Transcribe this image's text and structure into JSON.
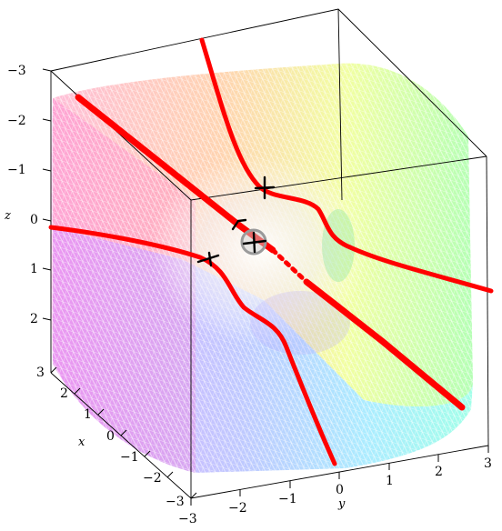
{
  "axes": {
    "z": {
      "label": "z",
      "ticks": [
        "−3",
        "−2",
        "−1",
        "0",
        "1",
        "2"
      ]
    },
    "x": {
      "label": "x",
      "ticks": [
        "3",
        "2",
        "1",
        "0",
        "−1",
        "−2",
        "−3"
      ]
    },
    "y": {
      "label": "y",
      "ticks": [
        "−3",
        "−2",
        "−1",
        "0",
        "1",
        "2",
        "3"
      ]
    }
  },
  "surface_colors": [
    "#ff66cc",
    "#ff8080",
    "#ffcc33",
    "#ccff33",
    "#66ff66",
    "#33ffcc",
    "#66ccff",
    "#9966ff",
    "#dd55ff"
  ],
  "curve_color": "#ff0000",
  "marker_color": "#000000"
}
